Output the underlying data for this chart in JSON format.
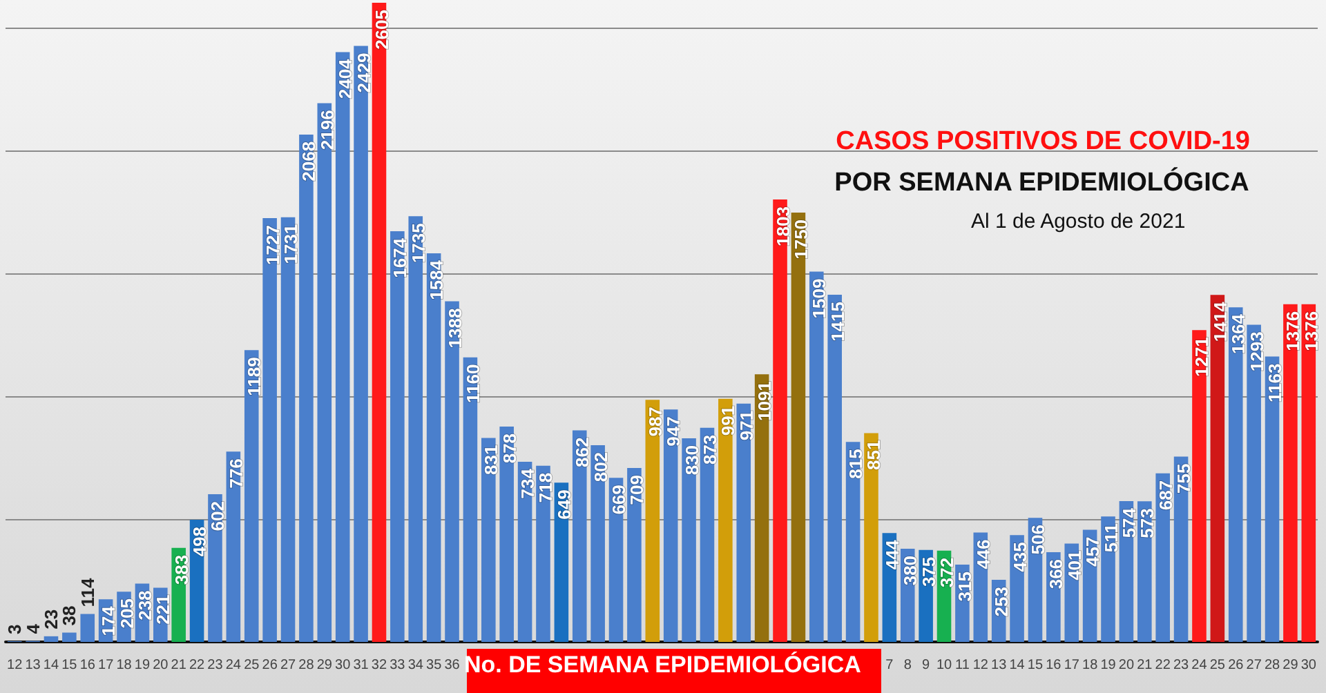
{
  "chart_data": {
    "type": "bar",
    "title": "CASOS POSITIVOS DE COVID-19",
    "subtitle": "POR SEMANA EPIDEMIOLÓGICA",
    "annotations": [
      "Al 1 de Agosto de 2021"
    ],
    "xlabel": "No. DE SEMANA EPIDEMIOLÓGICA",
    "categories": [
      "12",
      "13",
      "14",
      "15",
      "16",
      "17",
      "18",
      "19",
      "20",
      "21",
      "22",
      "23",
      "24",
      "25",
      "26",
      "27",
      "28",
      "29",
      "30",
      "31",
      "32",
      "33",
      "34",
      "35",
      "36",
      null,
      null,
      null,
      null,
      null,
      null,
      null,
      null,
      null,
      null,
      null,
      null,
      null,
      null,
      null,
      null,
      null,
      null,
      null,
      null,
      null,
      null,
      null,
      "7",
      "8",
      "9",
      "10",
      "11",
      "12",
      "13",
      "14",
      "15",
      "16",
      "17",
      "18",
      "19",
      "20",
      "21",
      "22",
      "23",
      "24",
      "25",
      "26",
      "27",
      "28",
      "29",
      "30"
    ],
    "values": [
      3,
      4,
      23,
      38,
      114,
      174,
      205,
      238,
      221,
      383,
      498,
      602,
      776,
      1189,
      1727,
      1731,
      2068,
      2196,
      2404,
      2429,
      2605,
      1674,
      1735,
      1584,
      1388,
      1160,
      831,
      878,
      734,
      718,
      649,
      862,
      802,
      669,
      709,
      987,
      947,
      830,
      873,
      991,
      971,
      1091,
      1803,
      1750,
      1509,
      1415,
      815,
      851,
      444,
      380,
      375,
      372,
      315,
      446,
      253,
      435,
      506,
      366,
      401,
      457,
      511,
      574,
      573,
      687,
      755,
      1271,
      1414,
      1364,
      1293,
      1163,
      1376,
      1376
    ],
    "colors": [
      "#4a7fcc",
      "#4a7fcc",
      "#4a7fcc",
      "#4a7fcc",
      "#4a7fcc",
      "#4a7fcc",
      "#4a7fcc",
      "#4a7fcc",
      "#4a7fcc",
      "#17b050",
      "#1a70c0",
      "#4a7fcc",
      "#4a7fcc",
      "#4a7fcc",
      "#4a7fcc",
      "#4a7fcc",
      "#4a7fcc",
      "#4a7fcc",
      "#4a7fcc",
      "#4a7fcc",
      "#ff1a1a",
      "#4a7fcc",
      "#4a7fcc",
      "#4a7fcc",
      "#4a7fcc",
      "#4a7fcc",
      "#4a7fcc",
      "#4a7fcc",
      "#4a7fcc",
      "#4a7fcc",
      "#1a70c0",
      "#4a7fcc",
      "#4a7fcc",
      "#4a7fcc",
      "#4a7fcc",
      "#d29e0a",
      "#4a7fcc",
      "#4a7fcc",
      "#4a7fcc",
      "#d29e0a",
      "#4a7fcc",
      "#94700e",
      "#ff1a1a",
      "#94700e",
      "#4a7fcc",
      "#4a7fcc",
      "#4a7fcc",
      "#d29e0a",
      "#1a70c0",
      "#4a7fcc",
      "#1a70c0",
      "#17b050",
      "#4a7fcc",
      "#4a7fcc",
      "#4a7fcc",
      "#4a7fcc",
      "#4a7fcc",
      "#4a7fcc",
      "#4a7fcc",
      "#4a7fcc",
      "#4a7fcc",
      "#4a7fcc",
      "#4a7fcc",
      "#4a7fcc",
      "#4a7fcc",
      "#ff1a1a",
      "#d01818",
      "#4a7fcc",
      "#4a7fcc",
      "#4a7fcc",
      "#ff1a1a",
      "#ff1a1a"
    ],
    "ylim": [
      0,
      2605
    ],
    "yticks": [
      {
        "value": 0,
        "label": null
      },
      {
        "value": 500,
        "label": null
      },
      {
        "value": 1000,
        "label": null
      },
      {
        "value": 1500,
        "label": null
      },
      {
        "value": 2000,
        "label": null
      },
      {
        "value": 2500,
        "label": null
      }
    ],
    "tick_labels": "x",
    "grid": "y",
    "data_labels": true
  }
}
